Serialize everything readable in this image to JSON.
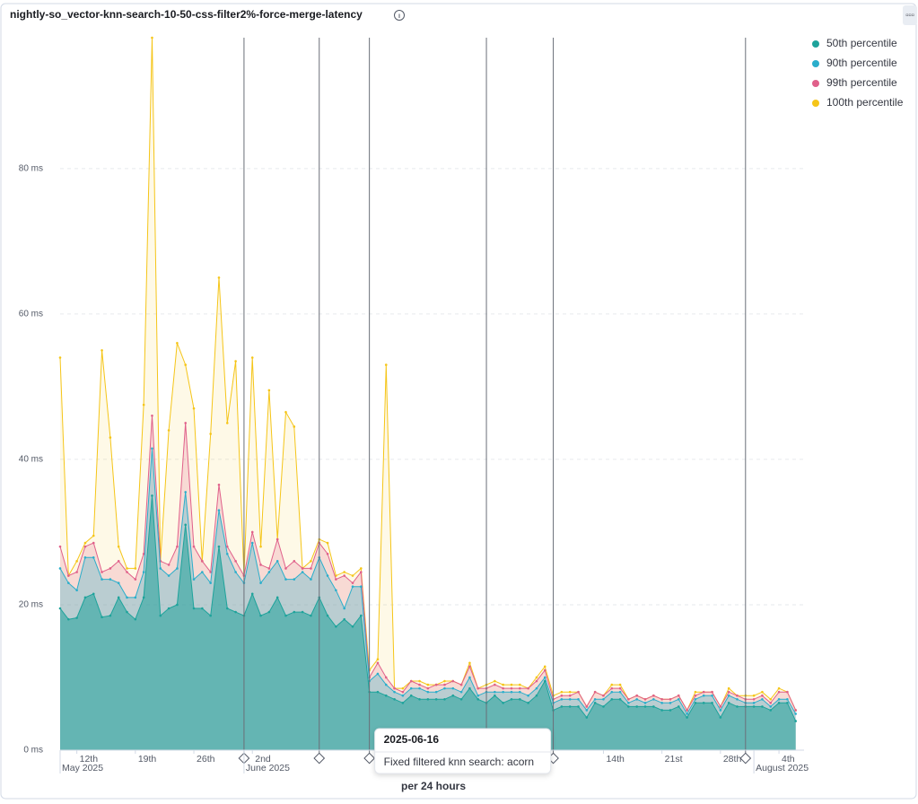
{
  "chart_data": {
    "type": "area",
    "title": "nightly-so_vector-knn-search-10-50-css-filter2%-force-merge-latency",
    "x_label": "per 24 hours",
    "x": [
      "2025-05-10",
      "2025-05-11",
      "2025-05-12",
      "2025-05-13",
      "2025-05-14",
      "2025-05-15",
      "2025-05-16",
      "2025-05-17",
      "2025-05-18",
      "2025-05-19",
      "2025-05-20",
      "2025-05-21",
      "2025-05-22",
      "2025-05-23",
      "2025-05-24",
      "2025-05-25",
      "2025-05-26",
      "2025-05-27",
      "2025-05-28",
      "2025-05-29",
      "2025-05-30",
      "2025-05-31",
      "2025-06-01",
      "2025-06-02",
      "2025-06-03",
      "2025-06-04",
      "2025-06-05",
      "2025-06-06",
      "2025-06-07",
      "2025-06-08",
      "2025-06-09",
      "2025-06-10",
      "2025-06-11",
      "2025-06-12",
      "2025-06-13",
      "2025-06-14",
      "2025-06-15",
      "2025-06-16",
      "2025-06-17",
      "2025-06-18",
      "2025-06-19",
      "2025-06-20",
      "2025-06-21",
      "2025-06-22",
      "2025-06-23",
      "2025-06-24",
      "2025-06-25",
      "2025-06-26",
      "2025-06-27",
      "2025-06-28",
      "2025-06-29",
      "2025-06-30",
      "2025-07-01",
      "2025-07-02",
      "2025-07-03",
      "2025-07-04",
      "2025-07-05",
      "2025-07-06",
      "2025-07-07",
      "2025-07-08",
      "2025-07-09",
      "2025-07-10",
      "2025-07-11",
      "2025-07-12",
      "2025-07-13",
      "2025-07-14",
      "2025-07-15",
      "2025-07-16",
      "2025-07-17",
      "2025-07-18",
      "2025-07-19",
      "2025-07-20",
      "2025-07-21",
      "2025-07-22",
      "2025-07-23",
      "2025-07-24",
      "2025-07-25",
      "2025-07-26",
      "2025-07-27",
      "2025-07-28",
      "2025-07-29",
      "2025-07-30",
      "2025-07-31",
      "2025-08-01",
      "2025-08-02",
      "2025-08-03",
      "2025-08-04",
      "2025-08-05",
      "2025-08-06"
    ],
    "series": [
      {
        "name": "50th percentile",
        "color": "#1ea39b",
        "values": [
          19.5,
          18,
          18.2,
          21,
          21.5,
          18.3,
          18.5,
          21,
          19,
          18,
          21,
          35,
          18.5,
          19.5,
          20,
          31,
          19.5,
          19.5,
          18.5,
          28,
          19.5,
          19,
          18.5,
          21.5,
          18.5,
          19,
          21,
          18.5,
          19,
          19,
          18.5,
          21,
          18.5,
          17,
          18,
          17,
          18.5,
          8,
          8,
          7.5,
          7,
          6.5,
          7.5,
          7,
          7,
          7,
          7,
          7.5,
          7,
          8.5,
          7,
          6.5,
          7.5,
          6.5,
          7,
          7,
          6.5,
          7.5,
          9.5,
          5.5,
          6,
          6,
          6,
          4.5,
          6.5,
          6,
          7,
          7,
          6,
          6,
          6,
          6,
          5.5,
          5.5,
          6,
          4.5,
          6.5,
          6.5,
          6.5,
          4.5,
          6.5,
          6,
          6,
          6,
          6,
          5.5,
          6.5,
          6.5,
          4
        ]
      },
      {
        "name": "90th percentile",
        "color": "#2aaecb",
        "values": [
          25,
          23,
          22,
          26.5,
          26.5,
          23.5,
          23.5,
          23,
          21,
          21,
          24.5,
          41.5,
          25,
          24,
          25,
          35.5,
          23.5,
          24.5,
          23,
          33,
          27,
          24.5,
          23,
          28.5,
          23,
          24.5,
          26,
          23.5,
          23.5,
          24.5,
          23.5,
          26.5,
          24,
          22,
          19.5,
          22.5,
          22.5,
          9.5,
          10.5,
          9,
          8,
          7.5,
          8.5,
          8.5,
          8,
          8,
          8.5,
          8.5,
          8,
          10,
          7.5,
          8,
          8,
          8,
          8,
          8,
          7.5,
          8.5,
          10,
          6.5,
          7,
          7,
          7,
          5.5,
          7,
          7,
          8,
          8,
          6.5,
          7,
          6.5,
          7,
          6.5,
          6.5,
          7,
          5,
          7,
          7.5,
          7.5,
          5.5,
          7.5,
          7,
          6.5,
          6.5,
          7,
          6,
          7,
          7,
          5
        ]
      },
      {
        "name": "99th percentile",
        "color": "#e0608a",
        "values": [
          28,
          24,
          24.5,
          28,
          28.5,
          24.5,
          25,
          26,
          24.5,
          23.5,
          27,
          46,
          26,
          25.5,
          28,
          45,
          28,
          26,
          24.5,
          36.5,
          28,
          26,
          24,
          30,
          25.5,
          25,
          29,
          25,
          26,
          25,
          25,
          28.5,
          27,
          23.5,
          24,
          23,
          24.5,
          10,
          12,
          10,
          8.5,
          8,
          9.5,
          9,
          8.5,
          9,
          9,
          9.5,
          9,
          11.5,
          8.5,
          8.5,
          9,
          8.5,
          8.5,
          8.5,
          8.5,
          9.5,
          11,
          7,
          7.5,
          7.5,
          8,
          6,
          8,
          7.5,
          8.5,
          8.5,
          7,
          7.5,
          7,
          7.5,
          7,
          7,
          7.5,
          5.5,
          7.5,
          8,
          8,
          6,
          8,
          7.5,
          7,
          7,
          7.5,
          6.5,
          8,
          8,
          5.5
        ]
      },
      {
        "name": "100th percentile",
        "color": "#f5c518",
        "values": [
          54,
          24,
          26,
          28.5,
          29.5,
          55,
          43,
          28,
          25,
          25,
          47.5,
          98,
          26,
          44,
          56,
          53,
          47,
          26,
          43.5,
          65,
          45,
          53.5,
          24,
          54,
          28,
          49.5,
          29,
          46.5,
          44.5,
          25,
          26,
          29,
          28.5,
          24,
          24.5,
          24,
          25,
          11,
          12.5,
          53,
          8.5,
          8.5,
          9.5,
          9.5,
          9,
          9,
          9.5,
          9.5,
          9,
          12,
          8.5,
          9,
          9.5,
          9,
          9,
          9,
          8.5,
          10,
          11.5,
          7.5,
          8,
          8,
          8,
          6,
          8,
          7.5,
          9,
          9,
          7,
          7.5,
          7,
          7.5,
          7,
          7,
          7.5,
          5.5,
          8,
          8,
          8,
          6,
          8.5,
          7.5,
          7.5,
          7.5,
          8,
          7,
          8.5,
          8,
          5.5
        ]
      }
    ],
    "xlim": [
      "2025-05-10",
      "2025-08-07"
    ],
    "ylim": [
      0,
      98
    ],
    "yticks": [
      {
        "value": 0,
        "label": "0 ms"
      },
      {
        "value": 20,
        "label": "20 ms"
      },
      {
        "value": 40,
        "label": "40 ms"
      },
      {
        "value": 60,
        "label": "60 ms"
      },
      {
        "value": 80,
        "label": "80 ms"
      }
    ],
    "xticks": [
      {
        "value": "2025-05-12",
        "label": "12th"
      },
      {
        "value": "2025-05-19",
        "label": "19th"
      },
      {
        "value": "2025-05-26",
        "label": "26th"
      },
      {
        "value": "2025-06-02",
        "label": "2nd"
      },
      {
        "value": "2025-07-14",
        "label": "14th"
      },
      {
        "value": "2025-07-21",
        "label": "21st"
      },
      {
        "value": "2025-07-28",
        "label": "28th"
      },
      {
        "value": "2025-08-04",
        "label": "4th"
      }
    ],
    "x_month_labels": [
      {
        "value": "2025-05-01",
        "label": "May 2025"
      },
      {
        "value": "2025-06-01",
        "label": "June 2025"
      },
      {
        "value": "2025-08-01",
        "label": "August 2025"
      }
    ],
    "annotation_dates": [
      "2025-06-01",
      "2025-06-10",
      "2025-06-16",
      "2025-06-30",
      "2025-07-08",
      "2025-07-31"
    ],
    "tooltip": {
      "title": "2025-06-16",
      "text": "Fixed filtered knn search: acorn"
    },
    "grid": true,
    "legend": "top-right"
  }
}
